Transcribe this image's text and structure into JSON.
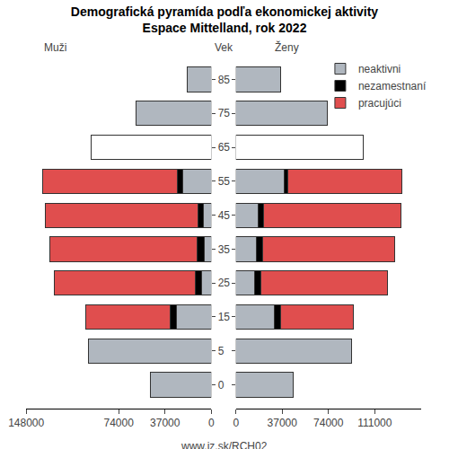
{
  "chart_data": {
    "type": "bar",
    "title": "Demografická pyramída podľa ekonomickej aktivity\nEspace Mittelland, rok 2022",
    "orientation": "horizontal",
    "stacked": true,
    "grid": false,
    "legend": "top right",
    "y_label": "Vek",
    "caption": "www.iz.sk/RCH02",
    "categories": [
      "0",
      "5",
      "15",
      "25",
      "35",
      "45",
      "55",
      "65",
      "75",
      "85"
    ],
    "panels": [
      {
        "name": "Muži",
        "xlim": [
          148000,
          0
        ],
        "xticks": [
          148000,
          74000,
          37000,
          0
        ],
        "series": [
          {
            "name": "neaktivni",
            "color": "#b0b7bf",
            "colors": [
              "#b0b7bf",
              "#b0b7bf",
              "#b0b7bf",
              "#b0b7bf",
              "#b0b7bf",
              "#b0b7bf",
              "#b0b7bf",
              "#ffffff",
              "#b0b7bf",
              "#b0b7bf"
            ],
            "values": [
              48400,
              98200,
              27700,
              7800,
              5700,
              6400,
              22800,
              96100,
              60500,
              19200
            ]
          },
          {
            "name": "nezamestnaní",
            "color": "#000000",
            "values": [
              0,
              0,
              5000,
              5000,
              5700,
              4300,
              4300,
              0,
              0,
              0
            ]
          },
          {
            "name": "pracujúci",
            "color": "#e04e4e",
            "values": [
              0,
              0,
              67600,
              112400,
              117400,
              121700,
              107400,
              0,
              0,
              0
            ]
          }
        ]
      },
      {
        "name": "Ženy",
        "xlim": [
          0,
          148000
        ],
        "xticks": [
          0,
          37000,
          74000,
          111000
        ],
        "series": [
          {
            "name": "neaktivni",
            "color": "#b0b7bf",
            "colors": [
              "#b0b7bf",
              "#b0b7bf",
              "#b0b7bf",
              "#b0b7bf",
              "#b0b7bf",
              "#b0b7bf",
              "#b0b7bf",
              "#ffffff",
              "#b0b7bf",
              "#b0b7bf"
            ],
            "values": [
              45800,
              92200,
              31000,
              14800,
              16200,
              17600,
              38700,
              102100,
              73200,
              35900
            ]
          },
          {
            "name": "nezamestnaní",
            "color": "#000000",
            "values": [
              0,
              0,
              4900,
              4900,
              4900,
              4200,
              2800,
              0,
              0,
              0
            ]
          },
          {
            "name": "pracujúci",
            "color": "#e04e4e",
            "values": [
              0,
              0,
              57700,
              101400,
              105600,
              109800,
              91500,
              0,
              0,
              0
            ]
          }
        ]
      }
    ]
  }
}
